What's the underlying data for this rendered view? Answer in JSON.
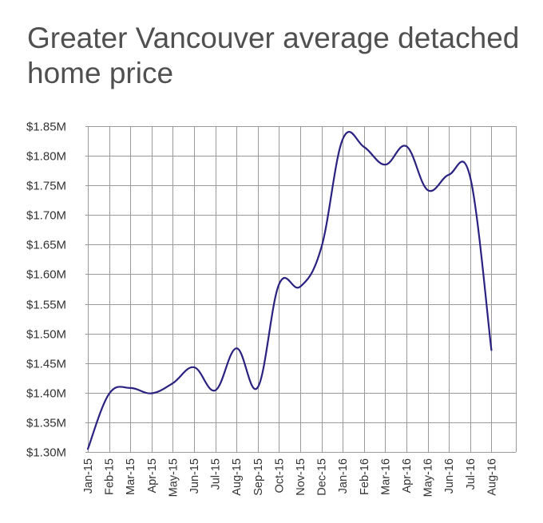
{
  "chart_data": {
    "type": "line",
    "title": "Greater Vancouver average detached home price",
    "xlabel": "",
    "ylabel": "",
    "categories": [
      "Jan-15",
      "Feb-15",
      "Mar-15",
      "Apr-15",
      "May-15",
      "Jun-15",
      "Jul-15",
      "Aug-15",
      "Sep-15",
      "Oct-15",
      "Nov-15",
      "Dec-15",
      "Jan-16",
      "Feb-16",
      "Mar-16",
      "Apr-16",
      "May-16",
      "Jun-16",
      "Jul-16",
      "Aug-16"
    ],
    "series": [
      {
        "values": [
          1.305,
          1.398,
          1.408,
          1.399,
          1.416,
          1.443,
          1.404,
          1.475,
          1.409,
          1.583,
          1.579,
          1.646,
          1.828,
          1.815,
          1.785,
          1.816,
          1.742,
          1.768,
          1.764,
          1.472
        ],
        "color": "#2a2280"
      }
    ],
    "ylim": [
      1.3,
      1.85
    ],
    "yticks": [
      1.3,
      1.35,
      1.4,
      1.45,
      1.5,
      1.55,
      1.6,
      1.65,
      1.7,
      1.75,
      1.8,
      1.85
    ],
    "ytick_labels": [
      "$1.30M",
      "$1.35M",
      "$1.40M",
      "$1.45M",
      "$1.50M",
      "$1.55M",
      "$1.60M",
      "$1.65M",
      "$1.70M",
      "$1.75M",
      "$1.80M",
      "$1.85M"
    ],
    "grid": true,
    "legend": "none"
  }
}
